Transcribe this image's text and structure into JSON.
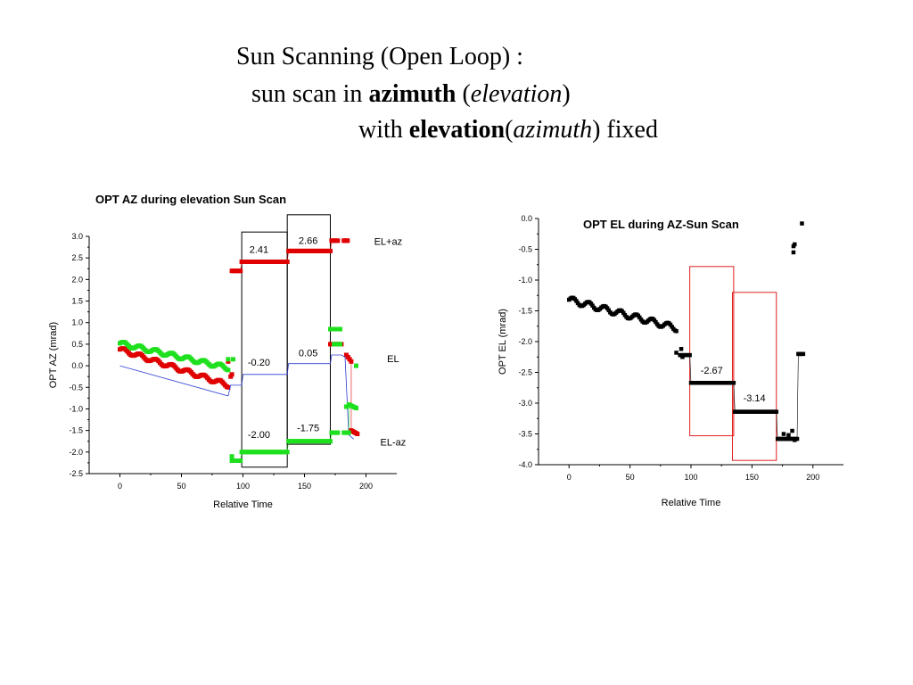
{
  "slide": {
    "title": {
      "line1": "Sun Scanning (Open Loop) :",
      "line2": {
        "pre": "sun scan in ",
        "bold": "azimuth",
        "mid": " (",
        "italic": "elevation",
        "post": ")"
      },
      "line3": {
        "pre": "with ",
        "bold": "elevation",
        "mid": "(",
        "italic": "azimuth",
        "post": ") fixed"
      }
    }
  },
  "chart_data": [
    {
      "type": "scatter",
      "title": "OPT AZ during elevation Sun Scan",
      "xlabel": "Relative Time",
      "ylabel": "OPT AZ (mrad)",
      "xlim": [
        -25,
        225
      ],
      "ylim": [
        -2.5,
        3.0
      ],
      "xticks": [
        0,
        50,
        100,
        150,
        200
      ],
      "yticks": [
        3.0,
        2.5,
        2.0,
        1.5,
        1.0,
        0.5,
        0.0,
        -0.5,
        -1.0,
        -1.5,
        -2.0,
        -2.5
      ],
      "ytick_labels": [
        "3.0",
        "2.5",
        "2.0",
        "1.5",
        "1.0",
        "0.5",
        "0.0",
        "-0.5",
        "-1.0",
        "-1.5",
        "-2.0",
        "-2.5"
      ],
      "grid": false,
      "series": [
        {
          "name": "EL+az",
          "color": "#e00000",
          "segments": [
            {
              "x0": 0,
              "x1": 88,
              "y0": 0.38,
              "y1": -0.45,
              "wavy": true
            },
            {
              "x0": 91,
              "x1": 98,
              "y0": 2.2,
              "y1": 2.2
            },
            {
              "x0": 99,
              "x1": 136,
              "y0": 2.41,
              "y1": 2.41
            },
            {
              "x0": 137,
              "x1": 171,
              "y0": 2.66,
              "y1": 2.66
            },
            {
              "x0": 172,
              "x1": 177,
              "y0": 2.9,
              "y1": 2.9
            },
            {
              "x0": 182,
              "x1": 185,
              "y0": 2.9,
              "y1": 2.9
            },
            {
              "x0": 171,
              "x1": 180,
              "y0": 0.5,
              "y1": 0.5
            },
            {
              "x0": 184,
              "x1": 188,
              "y0": 0.25,
              "y1": 0.1
            },
            {
              "x0": 188,
              "x1": 193,
              "y0": -1.5,
              "y1": -1.58
            }
          ],
          "points": [
            [
              90,
              -0.25
            ],
            [
              91,
              -0.2
            ],
            [
              88,
              0.1
            ]
          ]
        },
        {
          "name": "EL",
          "color": "#2e3bd6",
          "line": [
            [
              0,
              0.0
            ],
            [
              88,
              -0.7
            ],
            [
              90,
              -0.45
            ],
            [
              99,
              -0.45
            ],
            [
              100,
              -0.2
            ],
            [
              136,
              -0.2
            ],
            [
              137,
              0.05
            ],
            [
              171,
              0.05
            ],
            [
              172,
              0.25
            ],
            [
              180,
              0.25
            ],
            [
              183,
              0.2
            ],
            [
              186,
              -1.6
            ],
            [
              190,
              -1.7
            ]
          ]
        },
        {
          "name": "EL-az",
          "color": "#1ee01e",
          "segments": [
            {
              "x0": 0,
              "x1": 88,
              "y0": 0.52,
              "y1": -0.05,
              "wavy": true
            },
            {
              "x0": 91,
              "x1": 98,
              "y0": -2.2,
              "y1": -2.2
            },
            {
              "x0": 99,
              "x1": 136,
              "y0": -2.0,
              "y1": -2.0
            },
            {
              "x0": 137,
              "x1": 171,
              "y0": -1.75,
              "y1": -1.75
            },
            {
              "x0": 172,
              "x1": 177,
              "y0": -1.55,
              "y1": -1.55
            },
            {
              "x0": 171,
              "x1": 179,
              "y0": 0.85,
              "y1": 0.85
            },
            {
              "x0": 174,
              "x1": 179,
              "y0": 0.5,
              "y1": 0.5
            },
            {
              "x0": 182,
              "x1": 186,
              "y0": -1.55,
              "y1": -1.55
            },
            {
              "x0": 186,
              "x1": 192,
              "y0": -0.9,
              "y1": -0.98
            }
          ],
          "points": [
            [
              88,
              0.15
            ],
            [
              92,
              0.15
            ],
            [
              91,
              -2.1
            ],
            [
              192,
              0.0
            ],
            [
              184,
              -0.95
            ]
          ]
        }
      ],
      "annotations": [
        {
          "text": "2.41",
          "x": 113,
          "y": 2.62
        },
        {
          "text": "2.66",
          "x": 153,
          "y": 2.82
        },
        {
          "text": "-0.20",
          "x": 113,
          "y": 0.0
        },
        {
          "text": "0.05",
          "x": 153,
          "y": 0.22
        },
        {
          "text": "-2.00",
          "x": 113,
          "y": -1.67
        },
        {
          "text": "-1.75",
          "x": 153,
          "y": -1.52
        },
        {
          "text": "EL+az",
          "x": 218,
          "y": 2.8
        },
        {
          "text": "EL",
          "x": 222,
          "y": 0.08
        },
        {
          "text": "EL-az",
          "x": 222,
          "y": -1.85
        }
      ],
      "boxes": [
        {
          "x0": 99,
          "x1": 136,
          "y0": -2.35,
          "y1": 3.1,
          "color": "#000000"
        },
        {
          "x0": 136,
          "x1": 171,
          "y0": -1.82,
          "y1": 3.5,
          "color": "#000000"
        }
      ]
    },
    {
      "type": "scatter",
      "title": "OPT EL during AZ-Sun Scan",
      "xlabel": "Relative Time",
      "ylabel": "OPT EL (mrad)",
      "xlim": [
        -25,
        225
      ],
      "ylim": [
        -4.0,
        0.0
      ],
      "xticks": [
        0,
        50,
        100,
        150,
        200
      ],
      "yticks": [
        0.0,
        -0.5,
        -1.0,
        -1.5,
        -2.0,
        -2.5,
        -3.0,
        -3.5,
        -4.0
      ],
      "ytick_labels": [
        "0.0",
        "-0.5",
        "-1.0",
        "-1.5",
        "-2.0",
        "-2.5",
        "-3.0",
        "-3.5",
        "-4.0"
      ],
      "grid": false,
      "series": [
        {
          "name": "",
          "color": "#000000",
          "segments": [
            {
              "x0": 0,
              "x1": 88,
              "y0": -1.32,
              "y1": -1.78,
              "wavy": true
            },
            {
              "x0": 91,
              "x1": 99,
              "y0": -2.22,
              "y1": -2.22
            },
            {
              "x0": 100,
              "x1": 135,
              "y0": -2.67,
              "y1": -2.67
            },
            {
              "x0": 136,
              "x1": 170,
              "y0": -3.14,
              "y1": -3.14
            },
            {
              "x0": 171,
              "x1": 187,
              "y0": -3.58,
              "y1": -3.58
            },
            {
              "x0": 188,
              "x1": 192,
              "y0": -2.2,
              "y1": -2.2
            }
          ],
          "points": [
            [
              88,
              -2.18
            ],
            [
              92,
              -2.12
            ],
            [
              93,
              -2.25
            ],
            [
              176,
              -3.5
            ],
            [
              180,
              -3.52
            ],
            [
              183,
              -3.45
            ],
            [
              185,
              -3.6
            ],
            [
              184,
              -0.45
            ],
            [
              184,
              -0.55
            ],
            [
              185,
              -0.42
            ],
            [
              189,
              -2.2
            ],
            [
              191,
              -0.08
            ]
          ]
        }
      ],
      "annotations": [
        {
          "text": "-2.67",
          "x": 117,
          "y": -2.52
        },
        {
          "text": "-3.14",
          "x": 152,
          "y": -2.97
        }
      ],
      "boxes": [
        {
          "x0": 99,
          "x1": 135,
          "y0": -3.53,
          "y1": -0.78,
          "color": "#e02020"
        },
        {
          "x0": 134,
          "x1": 170,
          "y0": -3.93,
          "y1": -1.2,
          "color": "#e02020"
        }
      ]
    }
  ]
}
